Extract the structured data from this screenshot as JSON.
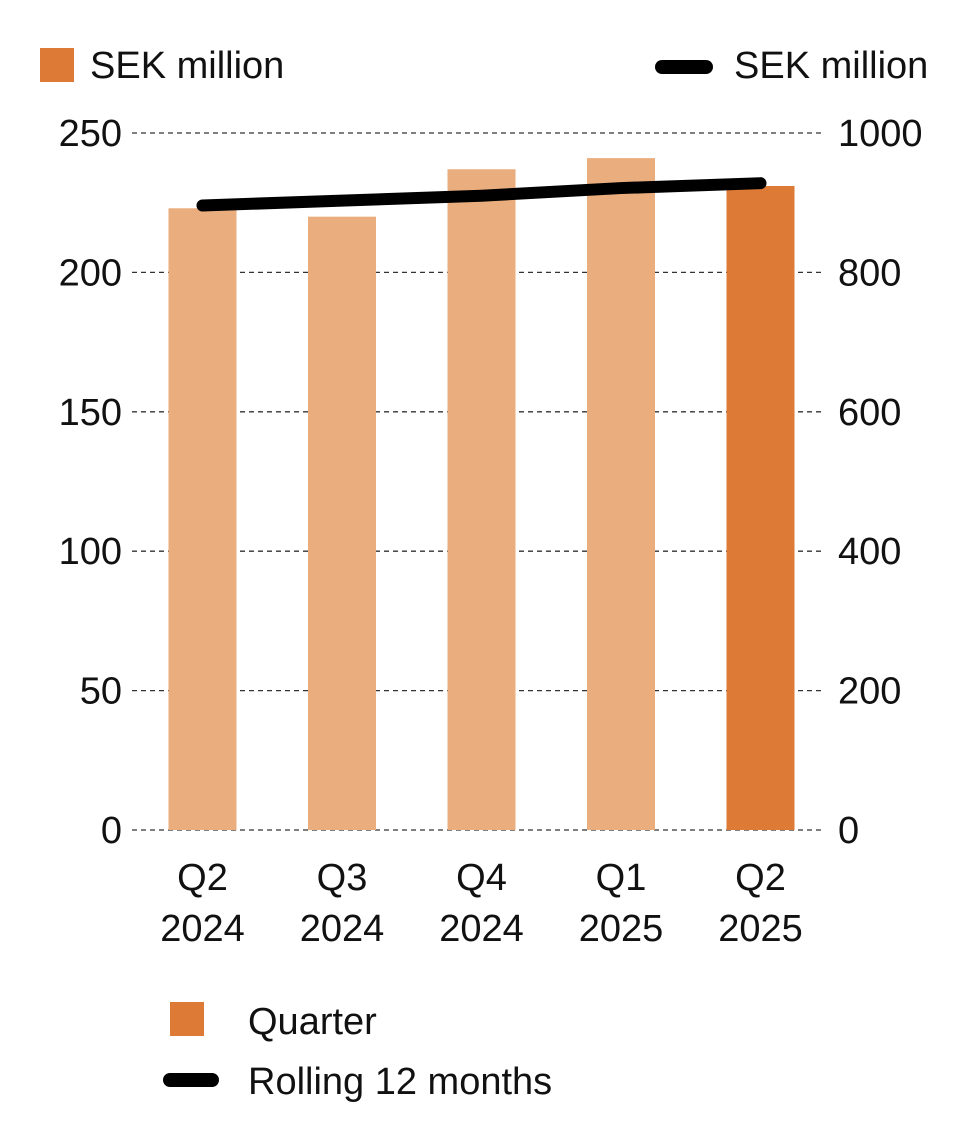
{
  "chart_data": {
    "type": "bar",
    "categories": [
      [
        "Q2",
        "2024"
      ],
      [
        "Q3",
        "2024"
      ],
      [
        "Q4",
        "2024"
      ],
      [
        "Q1",
        "2025"
      ],
      [
        "Q2",
        "2025"
      ]
    ],
    "series": [
      {
        "name": "Quarter",
        "type": "bar",
        "axis": "left",
        "values": [
          223,
          220,
          237,
          241,
          231
        ],
        "colors": [
          "#EAAE7E",
          "#EAAE7E",
          "#EAAE7E",
          "#EAAE7E",
          "#DD7A36"
        ]
      },
      {
        "name": "Rolling 12 months",
        "type": "line",
        "axis": "right",
        "values": [
          896,
          903,
          910,
          921,
          928
        ],
        "color": "#000000"
      }
    ],
    "left_axis": {
      "label": "SEK million",
      "ylim": [
        0,
        250
      ],
      "ticks": [
        0,
        50,
        100,
        150,
        200,
        250
      ]
    },
    "right_axis": {
      "label": "SEK million",
      "ylim": [
        0,
        1000
      ],
      "ticks": [
        0,
        200,
        400,
        600,
        800,
        1000
      ]
    },
    "grid": true,
    "grid_style": "dashed",
    "legend": {
      "placement": "bottom-left",
      "items": [
        {
          "label": "Quarter",
          "symbol": "square",
          "color": "#DD7A36"
        },
        {
          "label": "Rolling 12 months",
          "symbol": "line",
          "color": "#000000"
        }
      ]
    }
  }
}
